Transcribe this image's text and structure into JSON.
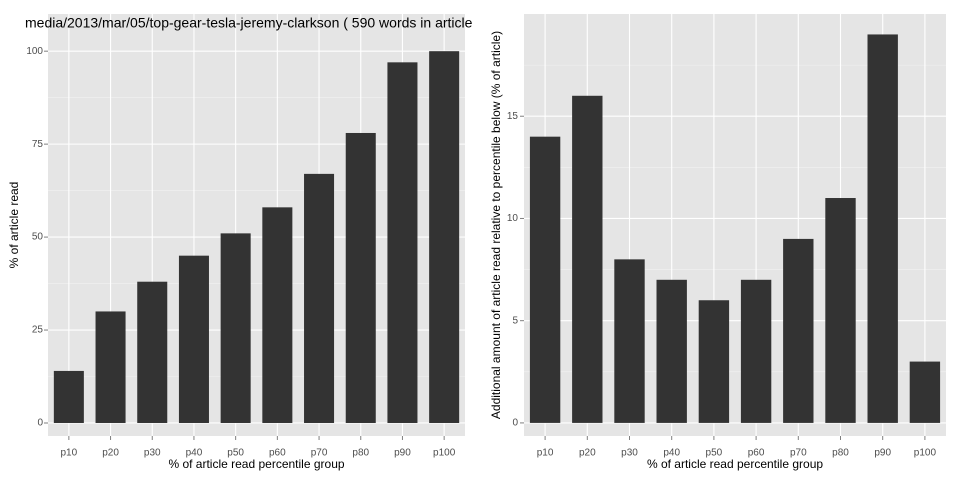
{
  "chart_data": [
    {
      "type": "bar",
      "title": "media/2013/mar/05/top-gear-tesla-jeremy-clarkson ( 590 words in article",
      "x_label": "% of article read percentile group",
      "y_label": "% of article read",
      "categories": [
        "p10",
        "p20",
        "p30",
        "p40",
        "p50",
        "p60",
        "p70",
        "p80",
        "p90",
        "p100"
      ],
      "values": [
        14,
        30,
        38,
        45,
        51,
        58,
        67,
        78,
        97,
        100
      ],
      "color": "#333333",
      "ylim": [
        -3.5,
        110
      ],
      "yticks": [
        0,
        25,
        50,
        75,
        100
      ],
      "grid": true
    },
    {
      "type": "bar",
      "x_label": "% of article read percentile group",
      "y_label": "Additional amount of article read relative to percentile below (% of article)",
      "categories": [
        "p10",
        "p20",
        "p30",
        "p40",
        "p50",
        "p60",
        "p70",
        "p80",
        "p90",
        "p100"
      ],
      "values": [
        14,
        16,
        8,
        7,
        6,
        7,
        9,
        11,
        19,
        3
      ],
      "color": "#333333",
      "ylim": [
        -0.64,
        20
      ],
      "yticks": [
        0,
        5,
        10,
        15
      ],
      "grid": true
    }
  ]
}
